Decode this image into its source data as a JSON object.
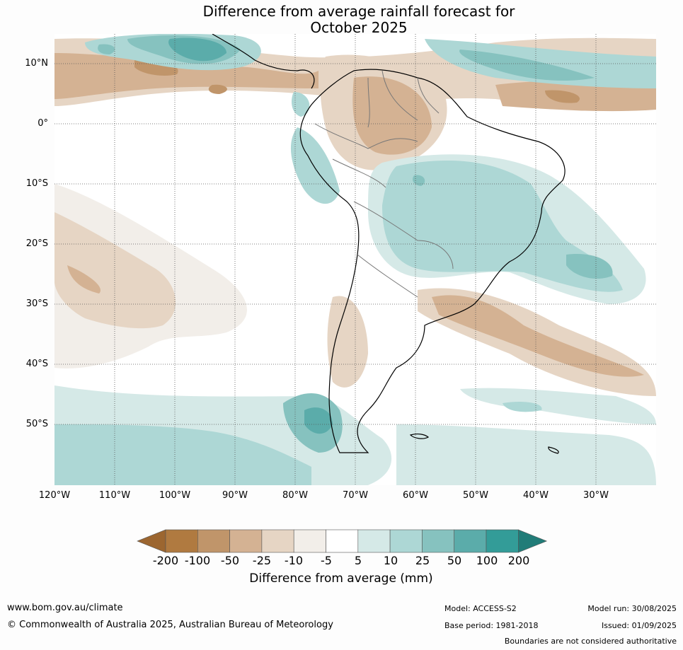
{
  "title_line1": "Difference from average rainfall forecast for",
  "title_line2": "October 2025",
  "lat_labels": [
    "10°N",
    "0°",
    "10°S",
    "20°S",
    "30°S",
    "40°S",
    "50°S"
  ],
  "lon_labels": [
    "120°W",
    "110°W",
    "100°W",
    "90°W",
    "80°W",
    "70°W",
    "60°W",
    "50°W",
    "40°W",
    "30°W"
  ],
  "colorbar": {
    "labels": [
      "-200",
      "-100",
      "-50",
      "-25",
      "-10",
      "-5",
      "5",
      "10",
      "25",
      "50",
      "100",
      "200"
    ],
    "colors": [
      "#9c6630",
      "#b07a40",
      "#c0956a",
      "#d4b293",
      "#e6d5c4",
      "#f2eee9",
      "#ffffff",
      "#d5e9e7",
      "#add7d5",
      "#86c2bf",
      "#5bacaa",
      "#339c98",
      "#217c78"
    ],
    "title": "Difference from average (mm)"
  },
  "footer": {
    "website": "www.bom.gov.au/climate",
    "copyright": "© Commonwealth of Australia 2025, Australian Bureau of Meteorology",
    "model": "Model: ACCESS-S2",
    "base_period": "Base period: 1981-2018",
    "model_run": "Model run: 30/08/2025",
    "issued": "Issued: 01/09/2025",
    "disclaimer": "Boundaries are not considered authoritative"
  }
}
